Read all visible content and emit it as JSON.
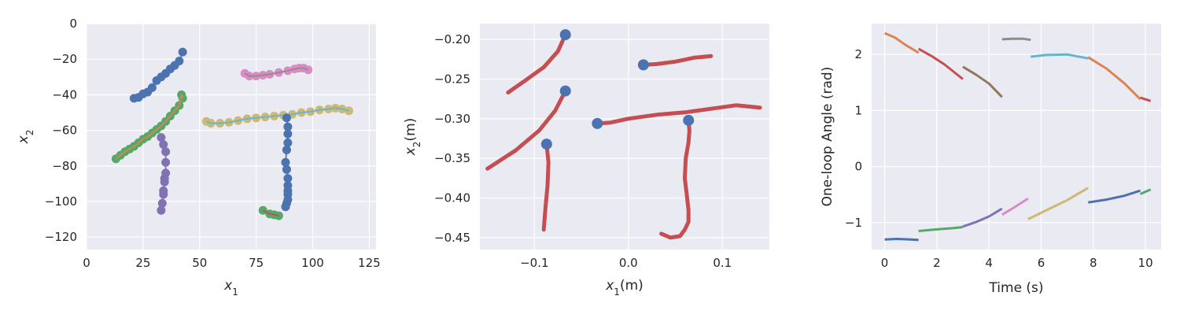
{
  "chart_data": [
    {
      "type": "scatter",
      "xlabel": "x",
      "xlabel_sub": "1",
      "ylabel": "x",
      "ylabel_sub": "2",
      "xlim": [
        0,
        128
      ],
      "ylim": [
        -127,
        0
      ],
      "xticks": [
        0,
        25,
        50,
        75,
        100,
        125
      ],
      "yticks": [
        0,
        -20,
        -40,
        -60,
        -80,
        -100,
        -120
      ],
      "xtick_labels": [
        "0",
        "25",
        "50",
        "75",
        "100",
        "125"
      ],
      "ytick_labels": [
        "0",
        "−20",
        "−40",
        "−60",
        "−80",
        "−100",
        "−120"
      ],
      "grid": true,
      "series": [
        {
          "color": "#4c72b0",
          "line": "#4c72b0",
          "x": [
            21,
            23,
            25,
            27,
            29,
            31,
            33,
            35,
            37,
            39,
            41,
            42.5
          ],
          "y": [
            -42,
            -41.5,
            -39.5,
            -38.5,
            -36,
            -32,
            -30,
            -28,
            -25.5,
            -23.5,
            -21,
            -16
          ]
        },
        {
          "color": "#55a868",
          "line": "#dd8452",
          "x": [
            13,
            15,
            17,
            19,
            21,
            23,
            25,
            27,
            29,
            31,
            33,
            35,
            37,
            39,
            41,
            42,
            42.5
          ],
          "y": [
            -76,
            -74,
            -72,
            -70.5,
            -69,
            -67,
            -65,
            -63.5,
            -61.5,
            -59.5,
            -57.5,
            -55,
            -52,
            -49,
            -46,
            -40,
            -42
          ]
        },
        {
          "color": "#8172b3",
          "line": "#8172b3",
          "x": [
            33,
            34,
            35,
            35,
            35,
            34.5,
            34.5,
            34,
            34,
            33.5,
            33
          ],
          "y": [
            -64,
            -68,
            -72,
            -78,
            -84,
            -87,
            -89,
            -94,
            -96,
            -101,
            -105
          ]
        },
        {
          "color": "#ccb974",
          "line": "#64b5cd",
          "x": [
            53,
            55,
            59,
            63,
            67,
            71,
            75,
            79,
            83,
            87,
            91,
            95,
            99,
            103,
            107,
            110,
            113,
            116
          ],
          "y": [
            -55,
            -56,
            -56,
            -55.5,
            -54.5,
            -53.5,
            -53,
            -52.5,
            -52,
            -51.5,
            -51,
            -50,
            -49.5,
            -48.5,
            -48,
            -47.5,
            -48,
            -49
          ]
        },
        {
          "color": "#4c72b0",
          "line": "#4c72b0",
          "x": [
            88.5,
            89,
            89,
            89,
            88.5,
            88,
            88.5,
            89,
            89,
            89,
            89,
            89,
            88.5,
            88
          ],
          "y": [
            -53,
            -58,
            -62,
            -67,
            -71,
            -78,
            -82,
            -87,
            -91,
            -94,
            -96,
            -99,
            -101,
            -103
          ]
        },
        {
          "color": "#55a868",
          "line": "#c44e52",
          "x": [
            78,
            81,
            83,
            85
          ],
          "y": [
            -105,
            -107,
            -107.5,
            -108
          ]
        },
        {
          "color": "#da8bc3",
          "line": "#8c8c8c",
          "x": [
            70,
            72,
            75,
            78,
            81,
            85,
            89,
            92,
            94,
            96,
            98
          ],
          "y": [
            -28,
            -29.5,
            -29.5,
            -29,
            -28.5,
            -27.5,
            -26.5,
            -25.5,
            -25,
            -25,
            -26
          ]
        }
      ]
    },
    {
      "type": "line",
      "xlabel": "x",
      "xlabel_sub": "1",
      "xlabel_unit": "(m)",
      "ylabel": "x",
      "ylabel_sub": "2",
      "ylabel_unit": "(m)",
      "xlim": [
        -0.158,
        0.15
      ],
      "ylim": [
        -0.465,
        -0.18
      ],
      "xticks": [
        -0.1,
        0.0,
        0.1
      ],
      "yticks": [
        -0.2,
        -0.25,
        -0.3,
        -0.35,
        -0.4,
        -0.45
      ],
      "xtick_labels": [
        "−0.1",
        "0.0",
        "0.1"
      ],
      "ytick_labels": [
        "−0.20",
        "−0.25",
        "−0.30",
        "−0.35",
        "−0.40",
        "−0.45"
      ],
      "grid": true,
      "line_color": "#c44e52",
      "start_color": "#4c72b0",
      "strokes": [
        {
          "x": [
            -0.067,
            -0.075,
            -0.09,
            -0.11,
            -0.128
          ],
          "y": [
            -0.194,
            -0.215,
            -0.235,
            -0.252,
            -0.267
          ]
        },
        {
          "x": [
            -0.067,
            -0.078,
            -0.095,
            -0.12,
            -0.15
          ],
          "y": [
            -0.265,
            -0.29,
            -0.315,
            -0.34,
            -0.363
          ]
        },
        {
          "x": [
            -0.087,
            -0.085,
            -0.086,
            -0.088,
            -0.09
          ],
          "y": [
            -0.332,
            -0.355,
            -0.385,
            -0.41,
            -0.44
          ]
        },
        {
          "x": [
            0.016,
            0.03,
            0.05,
            0.07,
            0.088
          ],
          "y": [
            -0.232,
            -0.231,
            -0.228,
            -0.223,
            -0.221
          ]
        },
        {
          "x": [
            -0.033,
            -0.02,
            0.0,
            0.03,
            0.06,
            0.09,
            0.115,
            0.14
          ],
          "y": [
            -0.306,
            -0.305,
            -0.3,
            -0.295,
            -0.292,
            -0.287,
            -0.283,
            -0.286
          ]
        },
        {
          "x": [
            0.064,
            0.065,
            0.064,
            0.061,
            0.06,
            0.062,
            0.064,
            0.064,
            0.06,
            0.055,
            0.045,
            0.035
          ],
          "y": [
            -0.302,
            -0.315,
            -0.33,
            -0.35,
            -0.375,
            -0.395,
            -0.415,
            -0.43,
            -0.44,
            -0.448,
            -0.45,
            -0.445
          ]
        }
      ],
      "start_points": [
        {
          "x": -0.067,
          "y": -0.194
        },
        {
          "x": -0.067,
          "y": -0.265
        },
        {
          "x": -0.087,
          "y": -0.332
        },
        {
          "x": 0.016,
          "y": -0.232
        },
        {
          "x": -0.033,
          "y": -0.306
        },
        {
          "x": 0.064,
          "y": -0.302
        }
      ]
    },
    {
      "type": "line",
      "xlabel": "Time (s)",
      "ylabel": "One-loop Angle (rad)",
      "xlim": [
        -0.5,
        10.6
      ],
      "ylim": [
        -1.48,
        2.55
      ],
      "xticks": [
        0,
        2,
        4,
        6,
        8,
        10
      ],
      "yticks": [
        2,
        1,
        0,
        -1
      ],
      "xtick_labels": [
        "0",
        "2",
        "4",
        "6",
        "8",
        "10"
      ],
      "ytick_labels": [
        "2",
        "1",
        "0",
        "−1"
      ],
      "grid": true,
      "series": [
        {
          "color": "#dd8452",
          "x": [
            0.0,
            0.4,
            0.8,
            1.3
          ],
          "y": [
            2.38,
            2.3,
            2.17,
            2.03
          ]
        },
        {
          "color": "#c44e52",
          "x": [
            1.3,
            1.8,
            2.3,
            3.0
          ],
          "y": [
            2.1,
            1.97,
            1.82,
            1.56
          ]
        },
        {
          "color": "#937860",
          "x": [
            3.0,
            3.5,
            4.0,
            4.5
          ],
          "y": [
            1.78,
            1.64,
            1.48,
            1.24
          ]
        },
        {
          "color": "#8c8c8c",
          "x": [
            4.5,
            4.9,
            5.3,
            5.6
          ],
          "y": [
            2.27,
            2.28,
            2.28,
            2.26
          ]
        },
        {
          "color": "#64b5cd",
          "x": [
            5.6,
            6.2,
            7.0,
            7.8
          ],
          "y": [
            1.96,
            1.99,
            2.0,
            1.93
          ]
        },
        {
          "color": "#dd8452",
          "x": [
            7.8,
            8.5,
            9.2,
            9.8
          ],
          "y": [
            1.95,
            1.75,
            1.48,
            1.2
          ]
        },
        {
          "color": "#c44e52",
          "x": [
            9.8,
            10.2
          ],
          "y": [
            1.23,
            1.17
          ]
        },
        {
          "color": "#4c72b0",
          "x": [
            0.0,
            0.5,
            1.0,
            1.3
          ],
          "y": [
            -1.3,
            -1.29,
            -1.3,
            -1.31
          ]
        },
        {
          "color": "#55a868",
          "x": [
            1.3,
            2.0,
            2.6,
            3.0
          ],
          "y": [
            -1.15,
            -1.12,
            -1.1,
            -1.08
          ]
        },
        {
          "color": "#8172b3",
          "x": [
            3.0,
            3.5,
            4.0,
            4.5
          ],
          "y": [
            -1.07,
            -0.99,
            -0.89,
            -0.75
          ]
        },
        {
          "color": "#da8bc3",
          "x": [
            4.5,
            5.0,
            5.5
          ],
          "y": [
            -0.86,
            -0.72,
            -0.57
          ]
        },
        {
          "color": "#ccb974",
          "x": [
            5.5,
            6.2,
            7.0,
            7.8
          ],
          "y": [
            -0.94,
            -0.78,
            -0.6,
            -0.38
          ]
        },
        {
          "color": "#4c72b0",
          "x": [
            7.8,
            8.5,
            9.2,
            9.8
          ],
          "y": [
            -0.64,
            -0.59,
            -0.52,
            -0.43
          ]
        },
        {
          "color": "#55a868",
          "x": [
            9.8,
            10.2
          ],
          "y": [
            -0.49,
            -0.41
          ]
        }
      ]
    }
  ]
}
